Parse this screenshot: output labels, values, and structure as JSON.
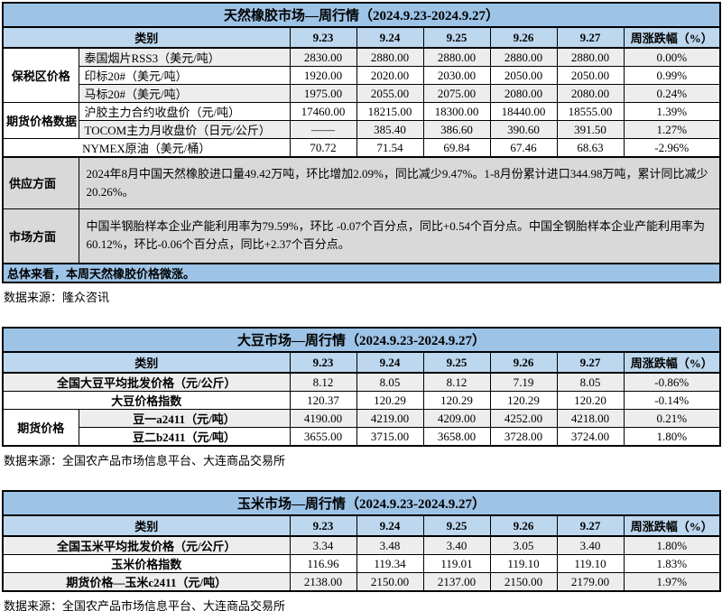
{
  "colors": {
    "title_bar": "#9DC3E6",
    "header_row": "#BDD7EE",
    "section_bg": "#D9D9D9",
    "stripe_bg": "#EDEDED",
    "border": "#000000"
  },
  "tables": [
    {
      "id": "rubber",
      "title": "天然橡胶市场—周行情（2024.9.23-2024.9.27）",
      "columns": [
        "类别",
        "9.23",
        "9.24",
        "9.25",
        "9.26",
        "9.27",
        "周涨跌幅（%）"
      ],
      "rows": [
        {
          "group": "保税区价格",
          "group_span": 3,
          "label": "泰国烟片RSS3（美元/吨）",
          "values": [
            "2830.00",
            "2880.00",
            "2880.00",
            "2880.00",
            "2880.00",
            "0.00%"
          ]
        },
        {
          "label": "印标20#（美元/吨）",
          "values": [
            "1920.00",
            "2020.00",
            "2030.00",
            "2050.00",
            "2050.00",
            "0.99%"
          ]
        },
        {
          "label": "马标20#（美元/吨）",
          "values": [
            "1975.00",
            "2055.00",
            "2075.00",
            "2080.00",
            "2080.00",
            "0.24%"
          ]
        },
        {
          "group": "期货价格数据",
          "group_span": 2,
          "label": "沪胶主力合约收盘价（元/吨）",
          "values": [
            "17460.00",
            "18215.00",
            "18300.00",
            "18440.00",
            "18555.00",
            "1.39%"
          ]
        },
        {
          "label": "TOCOM主力月收盘价（日元/公斤）",
          "values": [
            "——",
            "385.40",
            "386.60",
            "390.60",
            "391.50",
            "1.27%"
          ]
        },
        {
          "label_full": "NYMEX原油（美元/桶）",
          "values": [
            "70.72",
            "71.54",
            "69.84",
            "67.46",
            "68.63",
            "-2.96%"
          ]
        }
      ],
      "sections": [
        {
          "label": "供应方面",
          "text": "2024年8月中国天然橡胶进口量49.42万吨，环比增加2.09%，同比减少9.47%。1-8月份累计进口344.98万吨，累计同比减少20.26%。"
        },
        {
          "label": "市场方面",
          "text": "中国半钢胎样本企业产能利用率为79.59%，环比 -0.07个百分点，同比+0.54个百分点。中国全钢胎样本企业产能利用率为60.12%，环比-0.06个百分点，同比+2.37个百分点。"
        }
      ],
      "summary": "总体来看，本周天然橡胶价格微涨。",
      "source": "数据来源：隆众咨讯"
    },
    {
      "id": "soy",
      "title": "大豆市场—周行情（2024.9.23-2024.9.27）",
      "columns": [
        "类别",
        "9.23",
        "9.24",
        "9.25",
        "9.26",
        "9.27",
        "周涨跌幅（%）"
      ],
      "rows": [
        {
          "label_full": "全国大豆平均批发价格（元/公斤）",
          "values": [
            "8.12",
            "8.05",
            "8.12",
            "7.19",
            "8.05",
            "-0.86%"
          ]
        },
        {
          "label_full": "大豆价格指数",
          "values": [
            "120.37",
            "120.29",
            "120.29",
            "120.29",
            "120.20",
            "-0.14%"
          ]
        },
        {
          "group": "期货价格",
          "group_span": 2,
          "label": "豆一a2411（元/吨）",
          "values": [
            "4190.00",
            "4219.00",
            "4209.00",
            "4252.00",
            "4218.00",
            "0.21%"
          ]
        },
        {
          "label": "豆二b2411（元/吨）",
          "values": [
            "3655.00",
            "3715.00",
            "3658.00",
            "3728.00",
            "3724.00",
            "1.80%"
          ]
        }
      ],
      "sections": [],
      "summary": null,
      "source": "数据来源：全国农产品市场信息平台、大连商品交易所"
    },
    {
      "id": "corn",
      "title": "玉米市场—周行情（2024.9.23-2024.9.27）",
      "columns": [
        "类别",
        "9.23",
        "9.24",
        "9.25",
        "9.26",
        "9.27",
        "周涨跌幅（%）"
      ],
      "rows": [
        {
          "label_full": "全国玉米平均批发价格（元/公斤）",
          "values": [
            "3.34",
            "3.48",
            "3.40",
            "3.05",
            "3.40",
            "1.80%"
          ]
        },
        {
          "label_full": "玉米价格指数",
          "values": [
            "116.96",
            "119.34",
            "119.01",
            "119.10",
            "119.10",
            "1.83%"
          ]
        },
        {
          "label_full": "期货价格—玉米c2411（元/吨）",
          "values": [
            "2138.00",
            "2150.00",
            "2137.00",
            "2150.00",
            "2179.00",
            "1.97%"
          ]
        }
      ],
      "sections": [],
      "summary": null,
      "source": "数据来源：全国农产品市场信息平台、大连商品交易所"
    }
  ]
}
